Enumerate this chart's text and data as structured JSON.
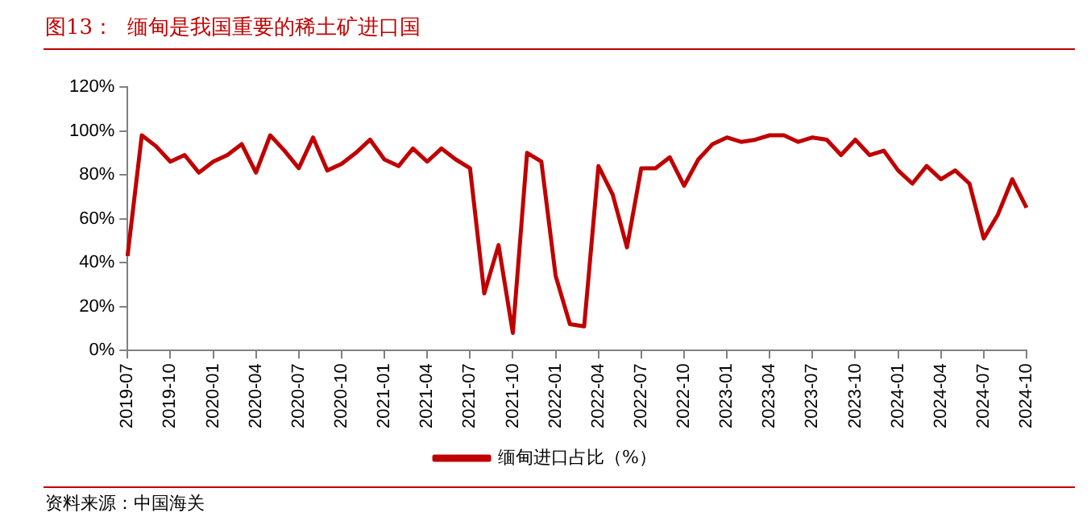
{
  "chart_data": {
    "type": "line",
    "title": "图13：  缅甸是我国重要的稀土矿进口国",
    "categories": [
      "2019-07",
      null,
      null,
      "2019-10",
      null,
      null,
      "2020-01",
      null,
      null,
      "2020-04",
      null,
      null,
      "2020-07",
      null,
      null,
      "2020-10",
      null,
      null,
      "2021-01",
      null,
      null,
      "2021-04",
      null,
      null,
      "2021-07",
      null,
      null,
      "2021-10",
      null,
      null,
      "2022-01",
      null,
      null,
      "2022-04",
      null,
      null,
      "2022-07",
      null,
      null,
      "2022-10",
      null,
      null,
      "2023-01",
      null,
      null,
      "2023-04",
      null,
      null,
      "2023-07",
      null,
      null,
      "2023-10",
      null,
      null,
      "2024-01",
      null,
      null,
      "2024-04",
      null,
      null,
      "2024-07",
      null,
      null,
      "2024-10"
    ],
    "series": [
      {
        "name": "缅甸进口占比（%）",
        "color": "#c00000",
        "values": [
          43,
          98,
          93,
          86,
          89,
          81,
          86,
          89,
          94,
          81,
          98,
          91,
          83,
          97,
          82,
          85,
          90,
          96,
          87,
          84,
          92,
          86,
          92,
          87,
          83,
          26,
          48,
          8,
          90,
          86,
          34,
          12,
          11,
          84,
          71,
          47,
          83,
          83,
          88,
          75,
          87,
          94,
          97,
          95,
          96,
          98,
          98,
          95,
          97,
          96,
          89,
          96,
          89,
          91,
          82,
          76,
          84,
          78,
          82,
          76,
          51,
          62,
          78,
          65
        ]
      }
    ],
    "ylim": [
      0,
      120
    ],
    "yticks": [
      {
        "value": 0,
        "label": "0%"
      },
      {
        "value": 20,
        "label": "20%"
      },
      {
        "value": 40,
        "label": "40%"
      },
      {
        "value": 60,
        "label": "60%"
      },
      {
        "value": 80,
        "label": "80%"
      },
      {
        "value": 100,
        "label": "100%"
      },
      {
        "value": 120,
        "label": "120%"
      }
    ],
    "grid": false,
    "legend": "bottom",
    "marker": "none",
    "line_style": "solid",
    "annotations": [
      "资料来源：中国海关"
    ]
  }
}
